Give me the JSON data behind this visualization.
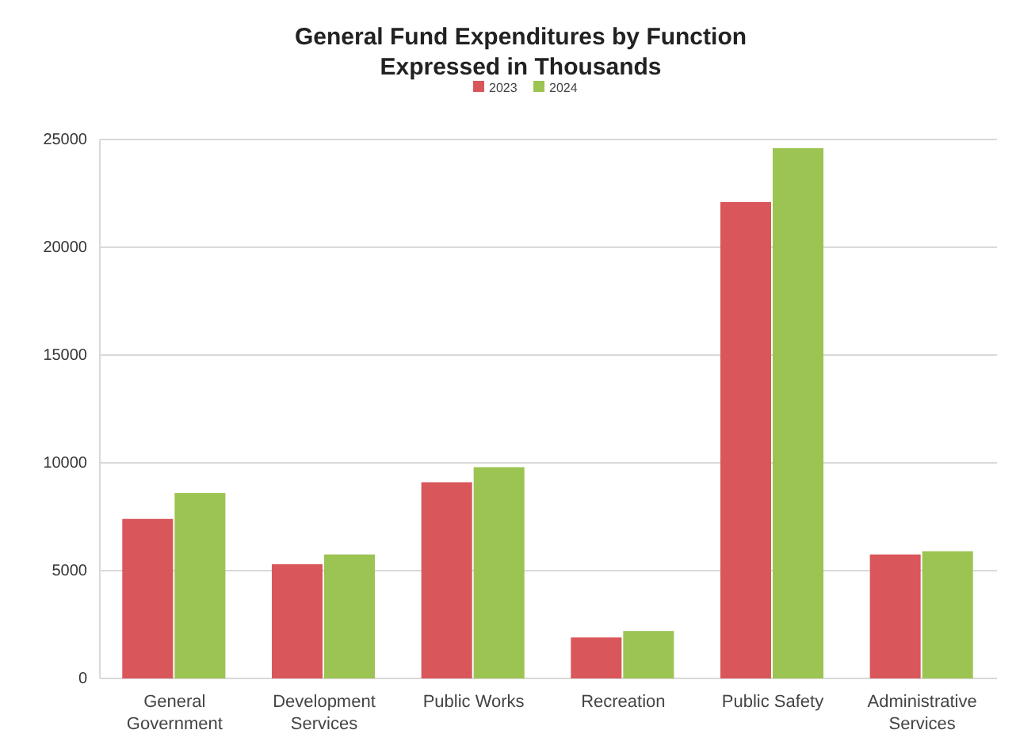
{
  "chart_data": {
    "type": "bar",
    "title": "General Fund Expenditures by Function\nExpressed in Thousands",
    "categories": [
      "General Government",
      "Development Services",
      "Public Works",
      "Recreation",
      "Public Safety",
      "Administrative Services"
    ],
    "series": [
      {
        "name": "2023",
        "color": "#d9575a",
        "values": [
          7400,
          5300,
          9100,
          1900,
          22100,
          5750
        ]
      },
      {
        "name": "2024",
        "color": "#9bc453",
        "values": [
          8600,
          5750,
          9800,
          2200,
          24600,
          5900
        ]
      }
    ],
    "ylim": [
      0,
      25000
    ],
    "yticks": [
      0,
      5000,
      10000,
      15000,
      20000,
      25000
    ],
    "grid": "y",
    "legend": "top"
  }
}
